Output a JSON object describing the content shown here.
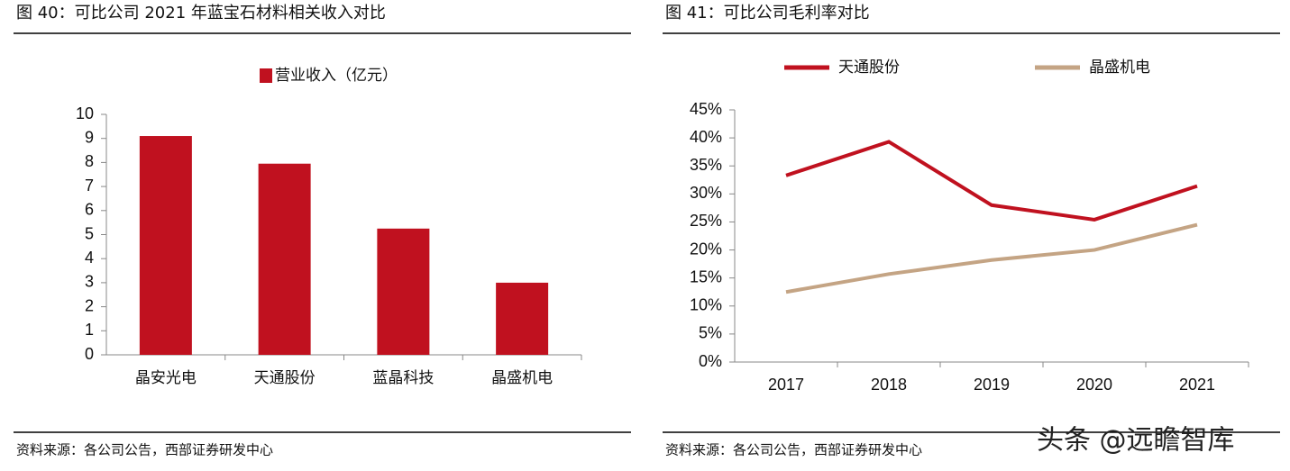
{
  "chart_data": [
    {
      "type": "bar",
      "title": "图 40：可比公司 2021 年蓝宝石材料相关收入对比",
      "categories": [
        "晶安光电",
        "天通股份",
        "蓝晶科技",
        "晶盛机电"
      ],
      "series": [
        {
          "name": "营业收入（亿元）",
          "color": "#c0111f",
          "values": [
            9.1,
            7.95,
            5.25,
            3.0
          ]
        }
      ],
      "ylim": [
        0,
        10
      ],
      "yticks": [
        0,
        1,
        2,
        3,
        4,
        5,
        6,
        7,
        8,
        9,
        10
      ],
      "source": "资料来源：各公司公告，西部证券研发中心"
    },
    {
      "type": "line",
      "title": "图 41：可比公司毛利率对比",
      "categories": [
        "2017",
        "2018",
        "2019",
        "2020",
        "2021"
      ],
      "series": [
        {
          "name": "天通股份",
          "color": "#c0111f",
          "values": [
            33.3,
            39.3,
            28.0,
            25.4,
            31.4
          ]
        },
        {
          "name": "晶盛机电",
          "color": "#c4a484",
          "values": [
            12.5,
            15.7,
            18.2,
            20.0,
            24.5
          ]
        }
      ],
      "ylim": [
        0,
        45
      ],
      "yticks": [
        {
          "value": 0,
          "label": "0%"
        },
        {
          "value": 5,
          "label": "5%"
        },
        {
          "value": 10,
          "label": "10%"
        },
        {
          "value": 15,
          "label": "15%"
        },
        {
          "value": 20,
          "label": "20%"
        },
        {
          "value": 25,
          "label": "25%"
        },
        {
          "value": 30,
          "label": "30%"
        },
        {
          "value": 35,
          "label": "35%"
        },
        {
          "value": 40,
          "label": "40%"
        },
        {
          "value": 45,
          "label": "45%"
        }
      ],
      "source": "资料来源：各公司公告，西部证券研发中心"
    }
  ],
  "watermark": "头条 @远瞻智库"
}
